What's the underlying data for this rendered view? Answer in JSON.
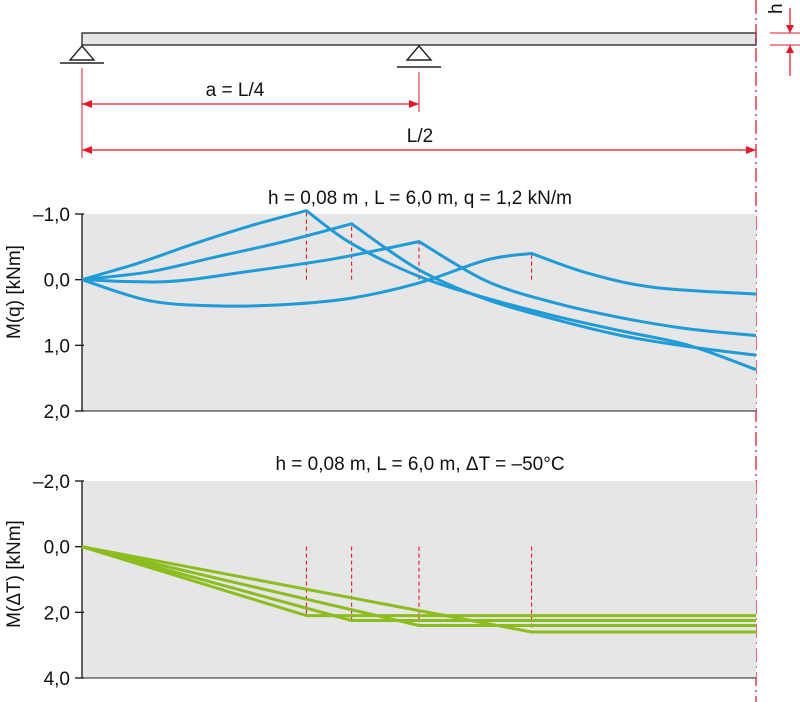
{
  "beam": {
    "h_label": "h",
    "span_a_label": "a = L/4",
    "span_half_label": "L/2"
  },
  "chart_data": [
    {
      "type": "line",
      "title": "h = 0,08 m , L = 6,0 m, q = 1,2 kN/m",
      "ylabel": "M(q) [kNm]",
      "yticks": [
        "–1,0",
        "0,0",
        "1,0",
        "2,0"
      ],
      "ylim": [
        -1.0,
        2.0
      ],
      "x_unit": "fraction of L/2",
      "support_positions": [
        0.333,
        0.4,
        0.5,
        0.667
      ],
      "series": [
        {
          "x": [
            0,
            0.083,
            0.167,
            0.25,
            0.333,
            0.4,
            0.5,
            0.6,
            0.7,
            0.8,
            0.9,
            1.0
          ],
          "values": [
            0,
            -0.25,
            -0.55,
            -0.82,
            -1.05,
            -0.55,
            -0.05,
            0.28,
            0.55,
            0.78,
            1.0,
            1.37
          ]
        },
        {
          "x": [
            0,
            0.1,
            0.2,
            0.3,
            0.4,
            0.5,
            0.6,
            0.7,
            0.8,
            0.9,
            1.0
          ],
          "values": [
            0,
            -0.12,
            -0.35,
            -0.58,
            -0.85,
            -0.15,
            0.3,
            0.6,
            0.85,
            1.02,
            1.15
          ]
        },
        {
          "x": [
            0,
            0.125,
            0.25,
            0.375,
            0.5,
            0.6,
            0.7,
            0.8,
            0.9,
            1.0
          ],
          "values": [
            0,
            0.03,
            -0.13,
            -0.32,
            -0.58,
            0.02,
            0.35,
            0.58,
            0.75,
            0.85
          ]
        },
        {
          "x": [
            0,
            0.1,
            0.2,
            0.3,
            0.4,
            0.5,
            0.6,
            0.667,
            0.75,
            0.85,
            1.0
          ],
          "values": [
            0,
            0.32,
            0.4,
            0.38,
            0.28,
            0.05,
            -0.3,
            -0.4,
            -0.1,
            0.12,
            0.22
          ]
        }
      ]
    },
    {
      "type": "line",
      "title": "h = 0,08 m, L = 6,0 m, ΔT = –50°C",
      "ylabel": "M(ΔT) [kNm]",
      "yticks": [
        "–2,0",
        "0,0",
        "2,0",
        "4,0"
      ],
      "ylim": [
        -2.0,
        4.0
      ],
      "x_unit": "fraction of L/2",
      "support_positions": [
        0.333,
        0.4,
        0.5,
        0.667
      ],
      "series": [
        {
          "x": [
            0,
            0.333,
            1.0
          ],
          "values": [
            0,
            2.1,
            2.1
          ]
        },
        {
          "x": [
            0,
            0.4,
            1.0
          ],
          "values": [
            0,
            2.25,
            2.25
          ]
        },
        {
          "x": [
            0,
            0.5,
            1.0
          ],
          "values": [
            0,
            2.4,
            2.4
          ]
        },
        {
          "x": [
            0,
            0.667,
            1.0
          ],
          "values": [
            0,
            2.6,
            2.6
          ]
        }
      ]
    }
  ],
  "colors": {
    "beam_fill": "#e6e6e6",
    "dim_red": "#e2192b",
    "panel_bg": "#e6e6e6",
    "moment_q": "#1f9bd7",
    "moment_dT": "#8cbd1f"
  }
}
